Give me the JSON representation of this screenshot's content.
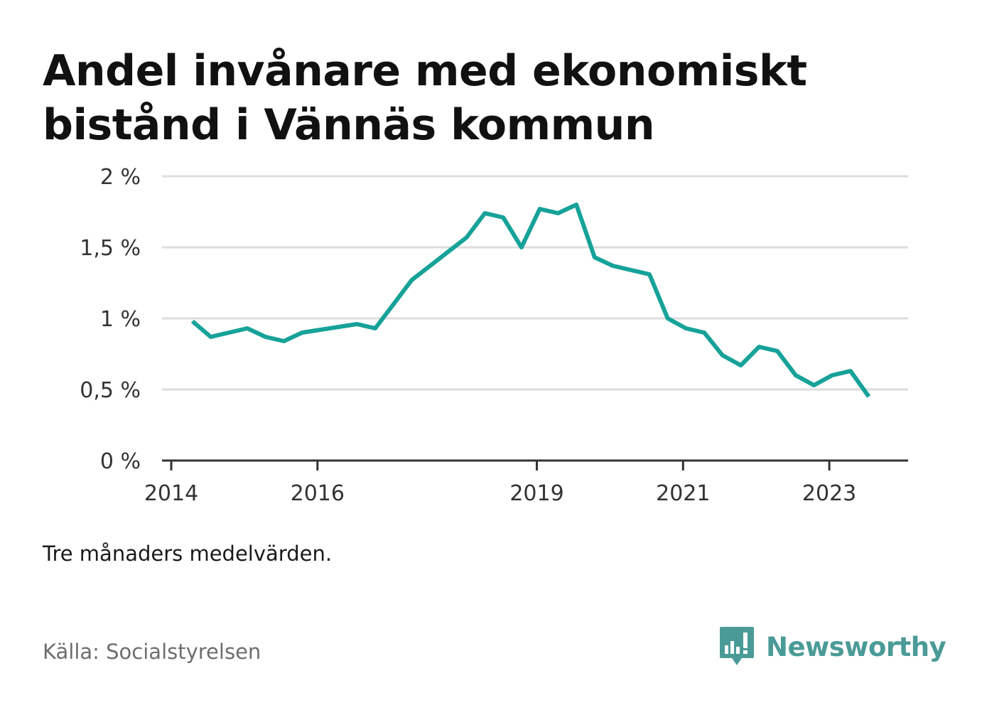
{
  "header": {
    "title": "Andel invånare med ekonomiskt bistånd i Vännäs kommun"
  },
  "note": "Tre månaders medelvärden.",
  "source": "Källa: Socialstyrelsen",
  "brand": {
    "name": "Newsworthy",
    "icon": "bar-chart-speech-bubble-icon",
    "color": "#4a9b97"
  },
  "colors": {
    "line": "#16a299",
    "grid": "#dddddd",
    "axis": "#333333"
  },
  "chart_data": {
    "type": "line",
    "title": "Andel invånare med ekonomiskt bistånd i Vännäs kommun",
    "xlabel": "",
    "ylabel": "",
    "ylim": [
      0,
      2
    ],
    "y_ticks": [
      0,
      0.5,
      1,
      1.5,
      2
    ],
    "y_tick_labels": [
      "0 %",
      "0,5 %",
      "1 %",
      "1,5 %",
      "2 %"
    ],
    "x_ticks": [
      2014,
      2016,
      2019,
      2021,
      2023
    ],
    "x_tick_labels": [
      "2014",
      "2016",
      "2019",
      "2021",
      "2023"
    ],
    "xlim": [
      2014,
      2024
    ],
    "grid": true,
    "series": [
      {
        "x": [
          2014.29,
          2014.54,
          2014.79,
          2015.04,
          2015.29,
          2015.54,
          2015.79,
          2016.04,
          2016.29,
          2016.54,
          2016.79,
          2017.04,
          2017.29,
          2017.54,
          2017.79,
          2018.04,
          2018.29,
          2018.54,
          2018.79,
          2019.04,
          2019.29,
          2019.54,
          2019.79,
          2020.04,
          2020.29,
          2020.54,
          2020.79,
          2021.04,
          2021.29,
          2021.54,
          2021.79,
          2022.04,
          2022.29,
          2022.54,
          2022.79,
          2023.04,
          2023.29,
          2023.54
        ],
        "values": [
          0.98,
          0.87,
          0.9,
          0.93,
          0.87,
          0.84,
          0.9,
          0.92,
          0.94,
          0.96,
          0.93,
          1.1,
          1.27,
          1.37,
          1.47,
          1.57,
          1.74,
          1.71,
          1.5,
          1.77,
          1.74,
          1.8,
          1.43,
          1.37,
          1.34,
          1.31,
          1.0,
          0.93,
          0.9,
          0.74,
          0.67,
          0.8,
          0.77,
          0.6,
          0.53,
          0.6,
          0.63,
          0.45
        ]
      }
    ]
  }
}
